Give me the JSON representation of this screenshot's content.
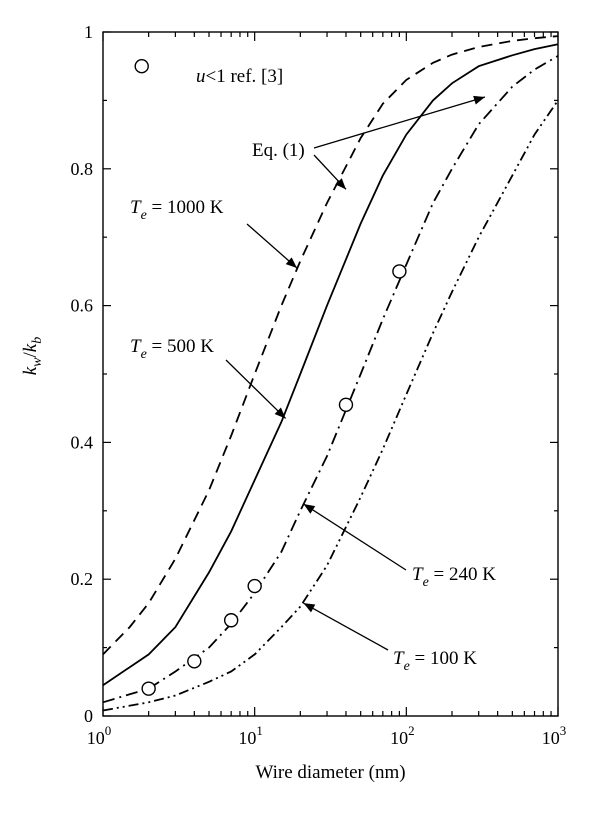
{
  "chart_data": {
    "type": "line",
    "x_scale": "log",
    "xlim": [
      1,
      1000
    ],
    "ylim": [
      0,
      1
    ],
    "grid": false,
    "xlabel": "Wire diameter (nm)",
    "ylabel": {
      "k1": "k",
      "s1": "w",
      "sep": "/",
      "k2": "k",
      "s2": "b"
    },
    "x_ticks": [
      {
        "base": "10",
        "exp": "0",
        "value": 1
      },
      {
        "base": "10",
        "exp": "1",
        "value": 10
      },
      {
        "base": "10",
        "exp": "2",
        "value": 100
      },
      {
        "base": "10",
        "exp": "3",
        "value": 1000
      }
    ],
    "y_ticks": [
      {
        "label": "0",
        "value": 0
      },
      {
        "label": "0.2",
        "value": 0.2
      },
      {
        "label": "0.4",
        "value": 0.4
      },
      {
        "label": "0.6",
        "value": 0.6
      },
      {
        "label": "0.8",
        "value": 0.8
      },
      {
        "label": "1",
        "value": 1
      }
    ],
    "series": [
      {
        "style": "dashed",
        "x": [
          1,
          1.5,
          2,
          3,
          5,
          7,
          10,
          15,
          20,
          30,
          50,
          70,
          100,
          150,
          200,
          300,
          500,
          700,
          1000
        ],
        "y": [
          0.09,
          0.13,
          0.165,
          0.23,
          0.33,
          0.41,
          0.5,
          0.6,
          0.665,
          0.75,
          0.845,
          0.895,
          0.93,
          0.955,
          0.967,
          0.978,
          0.987,
          0.991,
          0.994
        ]
      },
      {
        "style": "solid",
        "x": [
          1,
          2,
          3,
          5,
          7,
          10,
          15,
          20,
          30,
          50,
          70,
          100,
          150,
          200,
          300,
          500,
          700,
          1000
        ],
        "y": [
          0.045,
          0.09,
          0.13,
          0.21,
          0.27,
          0.345,
          0.43,
          0.5,
          0.6,
          0.72,
          0.79,
          0.85,
          0.9,
          0.925,
          0.95,
          0.966,
          0.975,
          0.982
        ]
      },
      {
        "style": "dash-dot",
        "x": [
          1,
          2,
          3,
          5,
          7,
          10,
          15,
          20,
          30,
          50,
          70,
          100,
          150,
          200,
          300,
          500,
          700,
          1000
        ],
        "y": [
          0.02,
          0.04,
          0.065,
          0.1,
          0.135,
          0.18,
          0.24,
          0.3,
          0.38,
          0.5,
          0.58,
          0.66,
          0.75,
          0.8,
          0.865,
          0.92,
          0.945,
          0.965
        ]
      },
      {
        "style": "dash-dot-dot",
        "x": [
          1,
          2,
          3,
          5,
          7,
          10,
          15,
          20,
          30,
          50,
          70,
          100,
          150,
          200,
          300,
          500,
          700,
          1000
        ],
        "y": [
          0.008,
          0.02,
          0.03,
          0.05,
          0.065,
          0.09,
          0.13,
          0.16,
          0.22,
          0.32,
          0.39,
          0.47,
          0.56,
          0.62,
          0.7,
          0.79,
          0.85,
          0.9
        ]
      }
    ],
    "points": {
      "x": [
        1.8,
        2,
        4,
        7,
        10,
        40,
        90
      ],
      "y": [
        0.95,
        0.04,
        0.08,
        0.14,
        0.19,
        0.455,
        0.65
      ]
    },
    "annotations": {
      "ref": {
        "u": "u",
        "rest": "<1 ref. [3]",
        "marker": "circle"
      },
      "eq": {
        "text": "Eq. (1)",
        "arrow_to_x": [
          [
            330,
            0.905
          ],
          [
            40,
            0.77
          ]
        ]
      },
      "te1000": {
        "T": "T",
        "sub": "e",
        "value": " = 1000 K",
        "arrow_to": [
          19,
          0.655
        ]
      },
      "te500": {
        "T": "T",
        "sub": "e",
        "value": " = 500 K",
        "arrow_to": [
          16,
          0.435
        ]
      },
      "te240": {
        "T": "T",
        "sub": "e",
        "value": " = 240 K",
        "arrow_to": [
          21,
          0.31
        ]
      },
      "te100": {
        "T": "T",
        "sub": "e",
        "value": " = 100 K",
        "arrow_to": [
          21,
          0.165
        ]
      }
    }
  }
}
